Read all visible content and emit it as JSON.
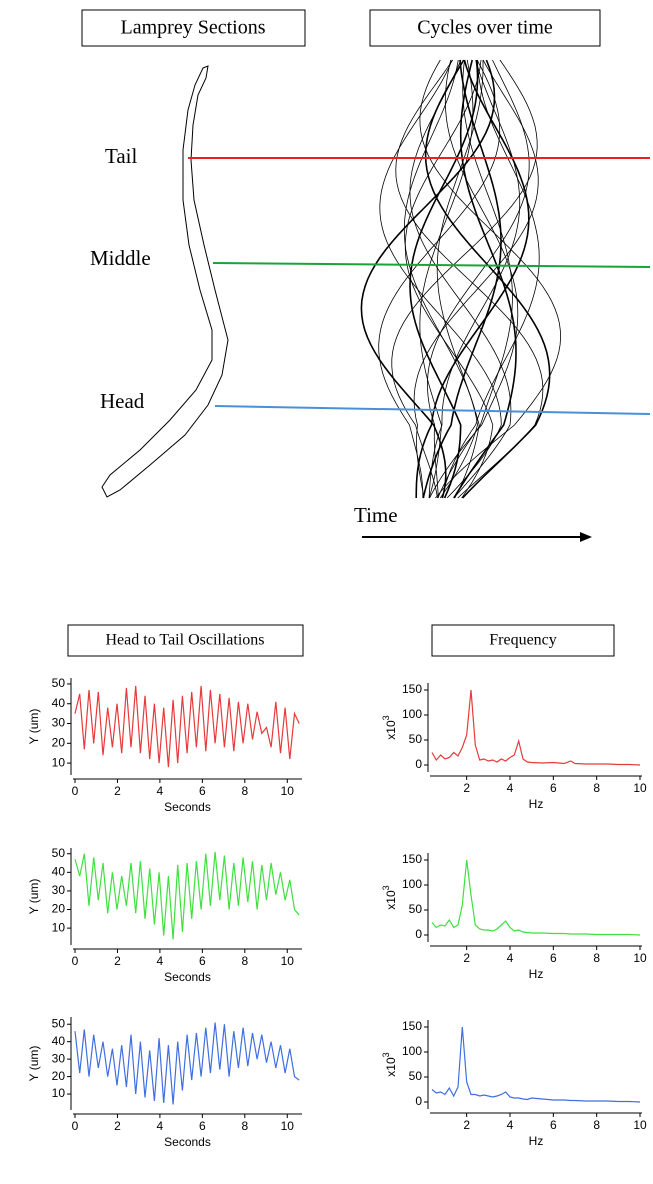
{
  "diagram": {
    "left_title": "Lamprey Sections",
    "right_title": "Cycles over time",
    "sections": [
      "Tail",
      "Middle",
      "Head"
    ],
    "time_label": "Time"
  },
  "column_titles": [
    "Head to Tail Oscillations",
    "Frequency"
  ],
  "chart_data": [
    {
      "type": "line",
      "x_label": "Seconds",
      "y_label": "Y (um)",
      "xlim": [
        0,
        10.6
      ],
      "ylim": [
        5,
        52
      ],
      "xticks": [
        0,
        2,
        4,
        6,
        8,
        10
      ],
      "yticks": [
        10,
        20,
        30,
        40,
        50
      ],
      "x": [
        0,
        0.22,
        0.44,
        0.66,
        0.88,
        1.1,
        1.32,
        1.54,
        1.76,
        1.98,
        2.2,
        2.42,
        2.64,
        2.86,
        3.08,
        3.3,
        3.52,
        3.74,
        3.96,
        4.18,
        4.4,
        4.62,
        4.84,
        5.06,
        5.28,
        5.5,
        5.72,
        5.94,
        6.16,
        6.38,
        6.6,
        6.82,
        7.04,
        7.26,
        7.48,
        7.7,
        7.92,
        8.14,
        8.36,
        8.58,
        8.8,
        9.02,
        9.24,
        9.46,
        9.68,
        9.9,
        10.12,
        10.34,
        10.56
      ],
      "series": [
        {
          "color": "#e8393b",
          "values": [
            35,
            45,
            17,
            47,
            20,
            46,
            14,
            38,
            18,
            40,
            15,
            48,
            18,
            49,
            15,
            44,
            12,
            40,
            10,
            38,
            8,
            42,
            10,
            44,
            15,
            46,
            18,
            49,
            16,
            47,
            20,
            45,
            18,
            43,
            16,
            41,
            20,
            40,
            22,
            36,
            25,
            28,
            18,
            41,
            15,
            38,
            12,
            35,
            30
          ]
        }
      ]
    },
    {
      "type": "line",
      "x_label": "Hz",
      "y_label": "x10",
      "y_label_exponent": "3",
      "xlim": [
        0.4,
        10
      ],
      "ylim": [
        -10,
        160
      ],
      "xticks": [
        2,
        4,
        6,
        8,
        10
      ],
      "yticks": [
        0,
        50,
        100,
        150
      ],
      "x": [
        0.4,
        0.6,
        0.8,
        1.0,
        1.2,
        1.4,
        1.6,
        1.8,
        2.0,
        2.2,
        2.4,
        2.6,
        2.8,
        3.0,
        3.2,
        3.4,
        3.6,
        3.8,
        4.0,
        4.2,
        4.4,
        4.6,
        4.8,
        5.0,
        5.5,
        6.0,
        6.5,
        6.8,
        7.0,
        7.5,
        8,
        8.5,
        9,
        9.5,
        10
      ],
      "series": [
        {
          "color": "#e8393b",
          "values": [
            25,
            10,
            20,
            12,
            15,
            25,
            18,
            35,
            60,
            150,
            40,
            10,
            12,
            8,
            10,
            6,
            12,
            8,
            15,
            20,
            48,
            12,
            6,
            5,
            4,
            5,
            3,
            8,
            3,
            2,
            2,
            2,
            1,
            1,
            0
          ]
        }
      ]
    },
    {
      "type": "line",
      "x_label": "Seconds",
      "y_label": "Y (um)",
      "xlim": [
        0,
        10.6
      ],
      "ylim": [
        2,
        52
      ],
      "xticks": [
        0,
        2,
        4,
        6,
        8,
        10
      ],
      "yticks": [
        10,
        20,
        30,
        40,
        50
      ],
      "x": [
        0,
        0.22,
        0.44,
        0.66,
        0.88,
        1.1,
        1.32,
        1.54,
        1.76,
        1.98,
        2.2,
        2.42,
        2.64,
        2.86,
        3.08,
        3.3,
        3.52,
        3.74,
        3.96,
        4.18,
        4.4,
        4.62,
        4.84,
        5.06,
        5.28,
        5.5,
        5.72,
        5.94,
        6.16,
        6.38,
        6.6,
        6.82,
        7.04,
        7.26,
        7.48,
        7.7,
        7.92,
        8.14,
        8.36,
        8.58,
        8.8,
        9.02,
        9.24,
        9.46,
        9.68,
        9.9,
        10.12,
        10.34,
        10.56
      ],
      "series": [
        {
          "color": "#3fe03f",
          "values": [
            47,
            38,
            50,
            22,
            48,
            25,
            45,
            18,
            40,
            20,
            38,
            22,
            45,
            18,
            46,
            15,
            42,
            12,
            40,
            6,
            38,
            4,
            44,
            8,
            45,
            15,
            46,
            20,
            50,
            22,
            51,
            25,
            49,
            20,
            45,
            22,
            48,
            24,
            46,
            20,
            44,
            25,
            45,
            28,
            40,
            25,
            36,
            20,
            17
          ]
        }
      ]
    },
    {
      "type": "line",
      "x_label": "Hz",
      "y_label": "x10",
      "y_label_exponent": "3",
      "xlim": [
        0.4,
        10
      ],
      "ylim": [
        -10,
        160
      ],
      "xticks": [
        2,
        4,
        6,
        8,
        10
      ],
      "yticks": [
        0,
        50,
        100,
        150
      ],
      "x": [
        0.4,
        0.6,
        0.8,
        1.0,
        1.2,
        1.4,
        1.6,
        1.8,
        2.0,
        2.2,
        2.4,
        2.6,
        2.8,
        3.0,
        3.2,
        3.4,
        3.6,
        3.8,
        4.0,
        4.2,
        4.4,
        4.6,
        4.8,
        5.0,
        5.5,
        6.0,
        6.5,
        6.8,
        7.0,
        7.5,
        8,
        8.5,
        9,
        9.5,
        10
      ],
      "series": [
        {
          "color": "#3fe03f",
          "values": [
            25,
            15,
            20,
            18,
            30,
            15,
            20,
            60,
            150,
            80,
            20,
            12,
            10,
            10,
            8,
            12,
            20,
            28,
            15,
            8,
            10,
            6,
            5,
            4,
            4,
            3,
            3,
            2,
            2,
            2,
            1,
            1,
            1,
            1,
            0
          ]
        }
      ]
    },
    {
      "type": "line",
      "x_label": "Seconds",
      "y_label": "Y (um)",
      "xlim": [
        0,
        10.6
      ],
      "ylim": [
        2,
        53
      ],
      "xticks": [
        0,
        2,
        4,
        6,
        8,
        10
      ],
      "yticks": [
        10,
        20,
        30,
        40,
        50
      ],
      "x": [
        0,
        0.22,
        0.44,
        0.66,
        0.88,
        1.1,
        1.32,
        1.54,
        1.76,
        1.98,
        2.2,
        2.42,
        2.64,
        2.86,
        3.08,
        3.3,
        3.52,
        3.74,
        3.96,
        4.18,
        4.4,
        4.62,
        4.84,
        5.06,
        5.28,
        5.5,
        5.72,
        5.94,
        6.16,
        6.38,
        6.6,
        6.82,
        7.04,
        7.26,
        7.48,
        7.7,
        7.92,
        8.14,
        8.36,
        8.58,
        8.8,
        9.02,
        9.24,
        9.46,
        9.68,
        9.9,
        10.12,
        10.34,
        10.56
      ],
      "series": [
        {
          "color": "#3f6fe0",
          "values": [
            46,
            22,
            47,
            20,
            44,
            25,
            40,
            20,
            36,
            15,
            38,
            14,
            44,
            10,
            40,
            8,
            35,
            6,
            42,
            5,
            38,
            4,
            40,
            12,
            44,
            18,
            45,
            20,
            48,
            22,
            51,
            24,
            50,
            20,
            46,
            25,
            48,
            26,
            45,
            30,
            44,
            28,
            40,
            25,
            38,
            22,
            36,
            20,
            18
          ]
        }
      ]
    },
    {
      "type": "line",
      "x_label": "Hz",
      "y_label": "x10",
      "y_label_exponent": "3",
      "xlim": [
        0.4,
        10
      ],
      "ylim": [
        -10,
        160
      ],
      "xticks": [
        2,
        4,
        6,
        8,
        10
      ],
      "yticks": [
        0,
        50,
        100,
        150
      ],
      "x": [
        0.4,
        0.6,
        0.8,
        1.0,
        1.2,
        1.4,
        1.6,
        1.8,
        2.0,
        2.2,
        2.4,
        2.6,
        2.8,
        3.0,
        3.2,
        3.4,
        3.6,
        3.8,
        4.0,
        4.2,
        4.4,
        4.6,
        4.8,
        5.0,
        5.5,
        6.0,
        6.5,
        6.8,
        7.0,
        7.5,
        8,
        8.5,
        9,
        9.5,
        10
      ],
      "series": [
        {
          "color": "#3f6fe0",
          "values": [
            25,
            18,
            20,
            15,
            28,
            12,
            30,
            150,
            40,
            15,
            15,
            12,
            14,
            12,
            10,
            12,
            15,
            20,
            10,
            8,
            8,
            6,
            5,
            8,
            6,
            4,
            4,
            3,
            3,
            2,
            2,
            2,
            1,
            1,
            0
          ]
        }
      ]
    }
  ]
}
